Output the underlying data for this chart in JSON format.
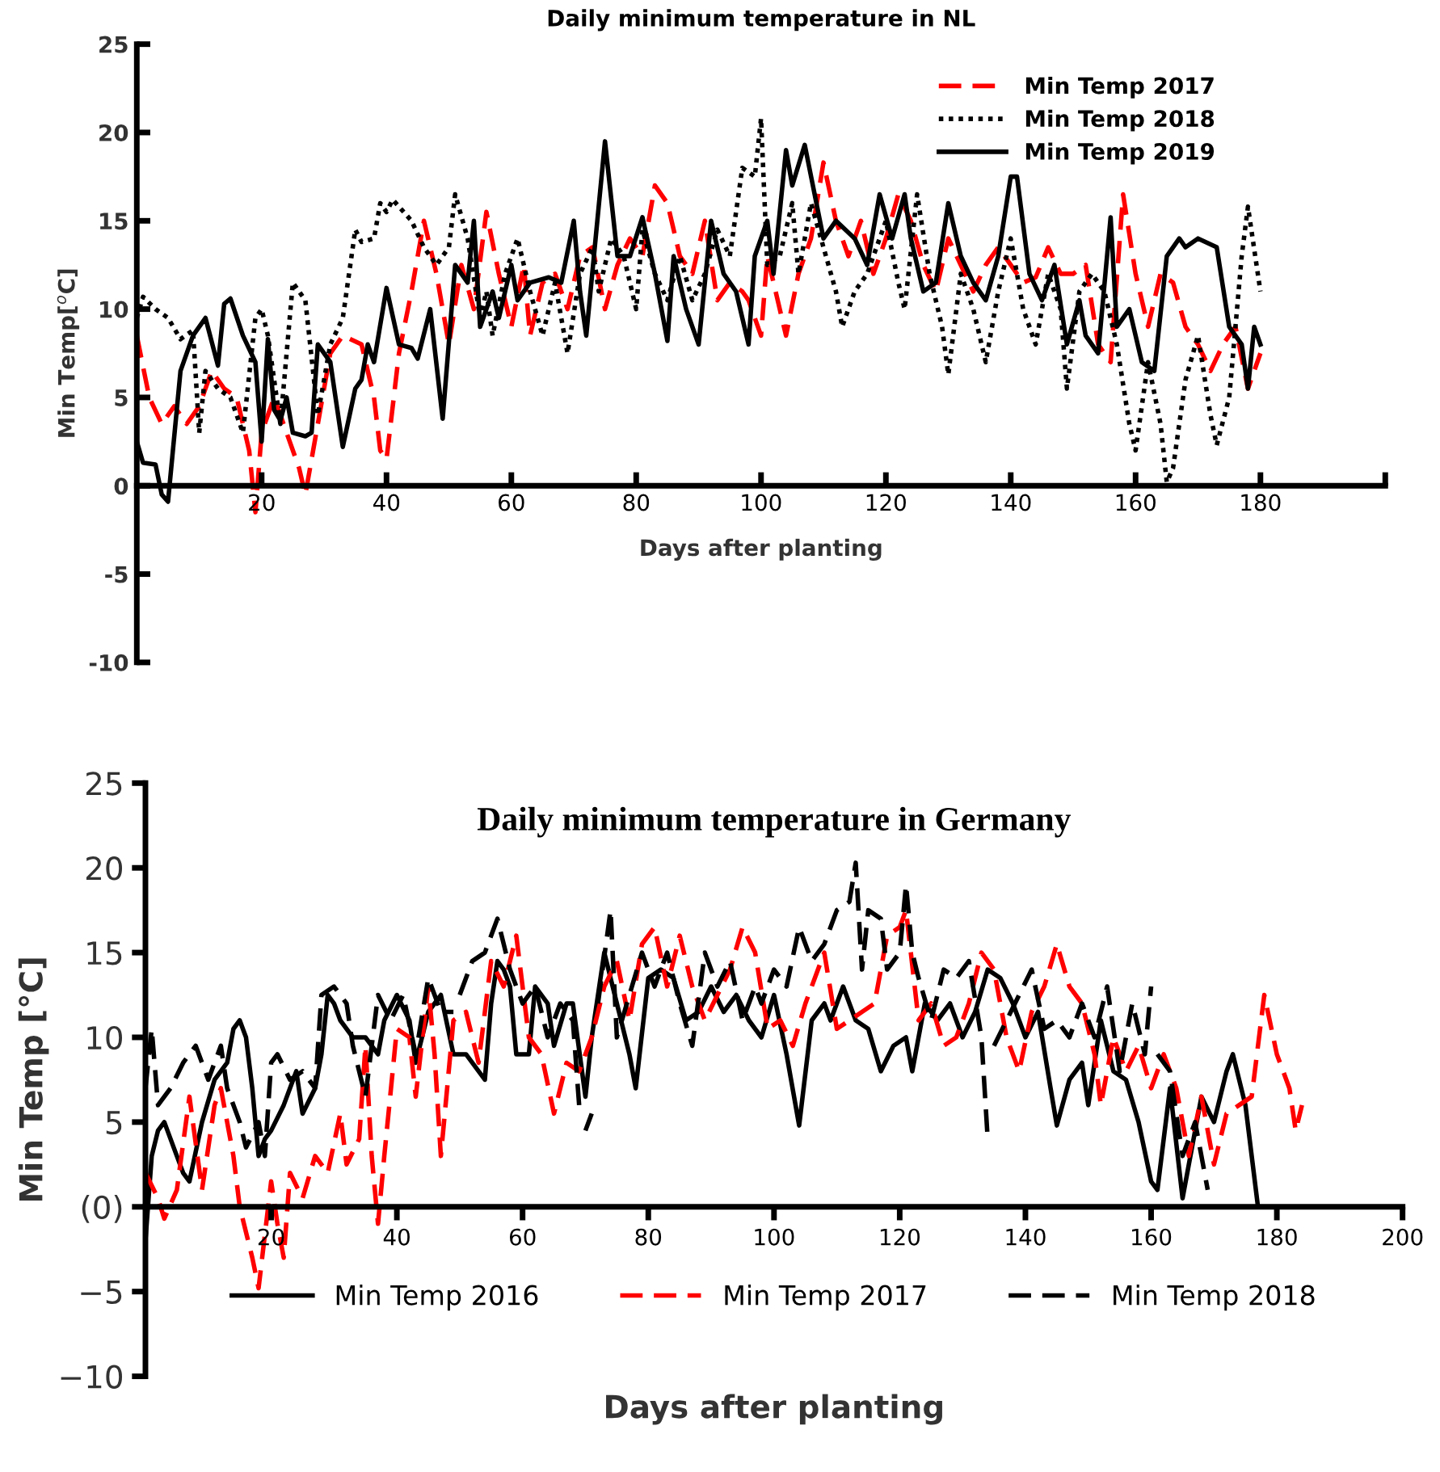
{
  "chart_data": [
    {
      "type": "line",
      "title": "Daily minimum temperature in NL",
      "xlabel": "Days after planting",
      "ylabel": "Min Temp[$^{o}$C]",
      "xlim": [
        0,
        200
      ],
      "xticks": [
        20,
        40,
        60,
        80,
        100,
        120,
        140,
        160,
        180,
        {
          "value": 200,
          "label": null
        }
      ],
      "ylim": [
        -10,
        25
      ],
      "yticks": [
        -10,
        -5,
        0,
        5,
        10,
        15,
        20,
        25
      ],
      "legend": "top right",
      "grid": false,
      "series": [
        {
          "name": "Min Temp 2017",
          "color": "#ff0000",
          "line_style": "dashed",
          "x": [
            0,
            2,
            4,
            6,
            8,
            10,
            12,
            14,
            16,
            18,
            19,
            20,
            22,
            24,
            26,
            27,
            29,
            31,
            33,
            36,
            38,
            39,
            40,
            42,
            44,
            46,
            48,
            50,
            52,
            54,
            56,
            58,
            60,
            62,
            63,
            65,
            67,
            69,
            71,
            73,
            75,
            77,
            79,
            81,
            83,
            85,
            87,
            89,
            91,
            93,
            95,
            97,
            98,
            100,
            101,
            103,
            104,
            106,
            108,
            110,
            112,
            114,
            116,
            118,
            120,
            122,
            124,
            126,
            128,
            130,
            132,
            134,
            136,
            138,
            140,
            142,
            144,
            146,
            148,
            150,
            152,
            154,
            156,
            158,
            160,
            162,
            164,
            166,
            168,
            170,
            172,
            174,
            176,
            178,
            180
          ],
          "values": [
            8.5,
            5,
            3.5,
            4.5,
            3.5,
            4.5,
            6.5,
            5.5,
            5,
            2,
            -1.5,
            3,
            5,
            3,
            1,
            -0.5,
            3.5,
            7.5,
            8.5,
            8,
            5,
            2,
            1.5,
            7.5,
            11,
            15,
            12,
            8,
            12.5,
            10,
            15.5,
            12,
            9,
            12.5,
            8.5,
            11.5,
            12,
            10,
            13,
            13.5,
            10,
            12.5,
            14,
            13,
            17,
            16,
            13,
            12,
            15,
            10.5,
            11.5,
            11,
            10.5,
            8.5,
            13,
            10,
            8.5,
            12,
            14,
            18.3,
            15,
            13,
            15,
            12,
            14,
            16.5,
            15,
            12.5,
            11,
            14,
            12.5,
            11,
            12.5,
            13.5,
            12.5,
            11.5,
            11.8,
            13.5,
            12,
            12,
            12.5,
            8,
            7,
            16.5,
            12,
            9,
            12,
            11.5,
            9,
            8,
            6.5,
            8,
            9,
            5.5,
            7.5
          ]
        },
        {
          "name": "Min Temp 2018",
          "color": "#000000",
          "line_style": "dotted",
          "x": [
            0,
            1,
            3,
            5,
            7,
            9,
            10,
            11,
            13,
            15,
            17,
            19,
            20,
            21,
            23,
            25,
            27,
            29,
            31,
            33,
            35,
            36,
            38,
            39,
            40,
            41,
            44,
            46,
            48,
            50,
            51,
            53,
            55,
            56,
            57,
            59,
            61,
            63,
            65,
            67,
            69,
            71,
            73,
            74,
            76,
            78,
            80,
            81,
            83,
            85,
            87,
            89,
            91,
            93,
            95,
            97,
            99,
            100,
            101,
            103,
            105,
            106,
            108,
            110,
            112,
            113,
            115,
            117,
            120,
            122,
            123,
            125,
            127,
            129,
            130,
            132,
            134,
            136,
            138,
            140,
            142,
            144,
            146,
            148,
            149,
            151,
            153,
            155,
            157,
            159,
            160,
            162,
            164,
            165,
            166,
            168,
            170,
            172,
            173,
            175,
            177,
            178,
            180
          ],
          "values": [
            9.5,
            10.7,
            10,
            9.5,
            8.3,
            8.8,
            3,
            6.5,
            5.5,
            5,
            3,
            9.5,
            10,
            8.5,
            3.5,
            11.5,
            10.5,
            4,
            8,
            9.5,
            14.5,
            13.8,
            14,
            16,
            15.5,
            16.2,
            15,
            13.5,
            12.5,
            13.5,
            16.5,
            14,
            9.5,
            11,
            8.5,
            12,
            14,
            11,
            8.5,
            11.5,
            7.5,
            12,
            13.5,
            11,
            14,
            13,
            10,
            14.5,
            12,
            10.5,
            13,
            10.5,
            12,
            14.5,
            13,
            18,
            17.5,
            20.8,
            12.5,
            13,
            16,
            12,
            16,
            13.5,
            11,
            9,
            11,
            12,
            15,
            11.5,
            10,
            16.5,
            12,
            9,
            6.3,
            12,
            10,
            7,
            11,
            14,
            10,
            8,
            12,
            10,
            5.5,
            11,
            12,
            11,
            8,
            3.5,
            2,
            7,
            3.5,
            0.2,
            1,
            6,
            8.5,
            4,
            2.3,
            5,
            13,
            15.8,
            11
          ]
        },
        {
          "name": "Min Temp 2019",
          "color": "#000000",
          "line_style": "solid",
          "x": [
            0,
            1,
            3,
            4,
            5,
            7,
            9,
            11,
            13,
            14,
            15,
            17,
            19,
            20,
            21,
            22,
            23,
            24,
            25,
            27,
            28,
            29,
            31,
            33,
            35,
            36,
            37,
            38,
            40,
            42,
            44,
            45,
            47,
            49,
            51,
            53,
            54,
            55,
            57,
            58,
            60,
            61,
            63,
            66,
            68,
            70,
            71,
            72,
            75,
            77,
            79,
            81,
            83,
            85,
            86,
            88,
            90,
            92,
            94,
            96,
            98,
            99,
            101,
            102,
            104,
            105,
            107,
            110,
            112,
            115,
            117,
            119,
            121,
            123,
            124,
            126,
            128,
            130,
            132,
            134,
            136,
            138,
            140,
            141,
            143,
            145,
            147,
            149,
            151,
            152,
            154,
            156,
            157,
            159,
            161,
            163,
            165,
            167,
            168,
            170,
            173,
            175,
            177,
            178,
            179,
            180
          ],
          "values": [
            2.5,
            1.3,
            1.2,
            -0.5,
            -0.9,
            6.5,
            8.5,
            9.5,
            6.8,
            10.3,
            10.6,
            8.5,
            7,
            2.5,
            8.3,
            4.3,
            3.7,
            5,
            3,
            2.8,
            3,
            8,
            7,
            2.2,
            5.5,
            6,
            8,
            7,
            11.2,
            8,
            7.8,
            7.2,
            10,
            3.8,
            12.5,
            11.5,
            15,
            9,
            11,
            9.5,
            12.5,
            10.5,
            11.5,
            11.8,
            11.5,
            15,
            11,
            8.5,
            19.5,
            13,
            13,
            15.2,
            12,
            8.2,
            13,
            10,
            8,
            15,
            12,
            11,
            8,
            13,
            15,
            12,
            19,
            17,
            19.3,
            14,
            15,
            14,
            12.5,
            16.5,
            14,
            16.5,
            14,
            11,
            11.5,
            16,
            13,
            11.5,
            10.5,
            13,
            17.5,
            17.5,
            12,
            10.5,
            12.5,
            8,
            10.5,
            8.5,
            7.5,
            15.2,
            9,
            10,
            7,
            6.5,
            13,
            14,
            13.5,
            14,
            13.5,
            9,
            8,
            5.5,
            9,
            8
          ]
        }
      ]
    },
    {
      "type": "line",
      "title": "Daily minimum temperature in Germany",
      "xlabel": "Days after planting",
      "ylabel": "Min Temp [°C]",
      "xlim": [
        0,
        200
      ],
      "xticks": [
        20,
        40,
        60,
        80,
        100,
        120,
        140,
        160,
        180,
        200
      ],
      "ylim": [
        -10,
        25
      ],
      "yticks": [
        {
          "value": -10,
          "label": "−10"
        },
        {
          "value": -5,
          "label": "−5"
        },
        {
          "value": 0,
          "label": "(0)"
        },
        5,
        10,
        15,
        20,
        25
      ],
      "legend": "bottom",
      "grid": false,
      "series": [
        {
          "name": "Min Temp 2016",
          "color": "#000000",
          "line_style": "solid",
          "x": [
            0,
            1,
            2,
            3,
            5,
            6,
            7,
            9,
            11,
            13,
            14,
            15,
            16,
            17,
            18,
            19,
            20,
            22,
            24,
            25,
            27,
            28,
            29,
            30,
            31,
            33,
            35,
            37,
            38,
            40,
            42,
            43,
            45,
            47,
            49,
            51,
            53,
            54,
            55,
            56,
            57,
            58,
            59,
            61,
            62,
            64,
            65,
            67,
            68,
            70,
            71,
            73,
            75,
            77,
            78,
            80,
            82,
            84,
            86,
            88,
            90,
            92,
            94,
            96,
            98,
            100,
            102,
            104,
            106,
            108,
            109,
            111,
            113,
            115,
            117,
            119,
            121,
            122,
            124,
            126,
            128,
            130,
            132,
            134,
            136,
            138,
            140,
            142,
            144,
            145,
            147,
            149,
            150,
            152,
            154,
            156,
            158,
            160,
            161,
            163,
            165,
            166,
            168,
            170,
            172,
            173,
            175,
            177
          ],
          "values": [
            -2,
            3,
            4.5,
            5,
            3,
            2,
            1.5,
            5,
            7.5,
            8.5,
            10.5,
            11,
            10,
            7,
            3,
            4,
            4.5,
            6,
            8,
            5.5,
            7,
            9,
            12.5,
            12,
            11,
            10,
            10,
            9,
            11,
            12.5,
            11,
            8.5,
            11.5,
            12.5,
            9,
            9,
            8,
            7.5,
            12,
            14.5,
            14,
            13,
            9,
            9,
            13,
            12,
            9.5,
            12,
            12,
            6.5,
            10,
            15,
            12,
            9,
            7,
            13.5,
            14,
            13.5,
            11,
            11.5,
            13,
            11.5,
            12.5,
            11,
            10,
            12.5,
            9,
            4.8,
            11,
            12,
            11,
            13,
            11,
            10.5,
            8,
            9.5,
            10,
            8,
            12,
            11,
            12,
            10,
            11.5,
            14,
            13.5,
            12,
            10,
            11.5,
            7,
            4.8,
            7.5,
            8.5,
            6,
            11,
            8,
            7.5,
            5,
            1.5,
            1,
            7,
            0.5,
            2.5,
            6.5,
            5,
            8,
            9,
            6,
            0
          ]
        },
        {
          "name": "Min Temp 2017",
          "color": "#ff0000",
          "line_style": "dashed",
          "x": [
            0,
            2,
            3,
            5,
            7,
            9,
            11,
            12,
            14,
            15,
            17,
            18,
            20,
            21,
            22,
            23,
            25,
            27,
            29,
            31,
            32,
            34,
            35,
            36,
            37,
            38,
            40,
            42,
            43,
            45,
            46,
            47,
            49,
            51,
            53,
            55,
            57,
            59,
            61,
            63,
            65,
            67,
            69,
            71,
            73,
            75,
            77,
            79,
            81,
            83,
            85,
            87,
            89,
            91,
            93,
            95,
            97,
            99,
            101,
            103,
            105,
            107,
            108,
            110,
            112,
            114,
            116,
            118,
            120,
            121,
            123,
            125,
            127,
            129,
            131,
            133,
            135,
            137,
            139,
            141,
            143,
            145,
            147,
            149,
            151,
            152,
            154,
            156,
            158,
            160,
            162,
            164,
            166,
            168,
            170,
            172,
            174,
            176,
            178,
            180,
            182,
            183,
            184
          ],
          "values": [
            2,
            0.5,
            -0.7,
            1,
            6.5,
            1,
            6,
            7,
            3,
            0,
            -3,
            -4.8,
            1.5,
            -1,
            -3,
            2,
            0.5,
            3,
            2,
            5.5,
            2.5,
            4,
            9.5,
            3,
            -1,
            3,
            10.5,
            10,
            6.5,
            13,
            9,
            3,
            11,
            11.5,
            8.5,
            14.5,
            13,
            16,
            10,
            9,
            5.5,
            8.5,
            8,
            10,
            13,
            14.5,
            11,
            15.5,
            16.5,
            13,
            16,
            13,
            11,
            12.5,
            14,
            16.5,
            15,
            10.5,
            11,
            9.5,
            12,
            14,
            15,
            10.5,
            11,
            11.5,
            12,
            16,
            16.5,
            17.5,
            11,
            12,
            9.5,
            10,
            12,
            15,
            14,
            10,
            8,
            11.5,
            13,
            15.5,
            13,
            12,
            9,
            6,
            10,
            8,
            9.5,
            7,
            9,
            7,
            3,
            6.5,
            2.5,
            5.5,
            6,
            6.5,
            12.5,
            9,
            7,
            4.5,
            6
          ]
        },
        {
          "name": "Min Temp 2018",
          "color": "#000000",
          "line_style": "dashed",
          "x": [
            0,
            1,
            2,
            4,
            6,
            8,
            10,
            12,
            13,
            15,
            16,
            18,
            19,
            20,
            21,
            23,
            25,
            27,
            28,
            30,
            32,
            33,
            35,
            37,
            39,
            41,
            43,
            45,
            47,
            49,
            49.5,
            50,
            52,
            54,
            56,
            58,
            60,
            62,
            64,
            66,
            68,
            69,
            69.5,
            70,
            71,
            71.5,
            72,
            74,
            75,
            77,
            79,
            81,
            83,
            85,
            87,
            89,
            91,
            93,
            95,
            97,
            98,
            100,
            102,
            104,
            106,
            108,
            110,
            112,
            113,
            114,
            115,
            117,
            118,
            120,
            121,
            122,
            123,
            125,
            127,
            129,
            131,
            133,
            134,
            134.5,
            135,
            137,
            139,
            141,
            143,
            145,
            147,
            149,
            151,
            153,
            155,
            157,
            159,
            160,
            160.5,
            161,
            163,
            165,
            167,
            169
          ],
          "values": [
            7,
            10.5,
            6,
            7,
            8.5,
            9.5,
            7.5,
            9.5,
            7,
            5,
            3.5,
            5,
            3,
            8.5,
            9,
            7.5,
            8,
            7,
            12.5,
            13,
            12,
            9.5,
            6.5,
            12.5,
            11,
            12.5,
            9,
            13.5,
            11.5,
            11.5,
            null,
            12.5,
            14.5,
            15,
            17,
            14,
            12,
            13,
            10,
            12,
            11,
            6,
            null,
            4.5,
            5.5,
            null,
            12,
            17.5,
            10,
            12.5,
            15,
            13,
            15,
            12,
            9.5,
            15,
            13,
            14.5,
            11,
            13,
            12,
            14,
            13,
            16.5,
            14.5,
            15.5,
            17.5,
            18,
            20.3,
            14,
            17.5,
            17,
            14,
            15,
            19,
            15,
            13.5,
            11,
            14,
            13.5,
            14.5,
            10,
            4,
            null,
            9.5,
            11,
            12.5,
            14,
            10.5,
            11,
            10,
            12,
            10,
            13,
            8,
            12,
            9,
            13,
            null,
            9,
            8,
            3,
            5,
            1
          ]
        }
      ]
    }
  ]
}
